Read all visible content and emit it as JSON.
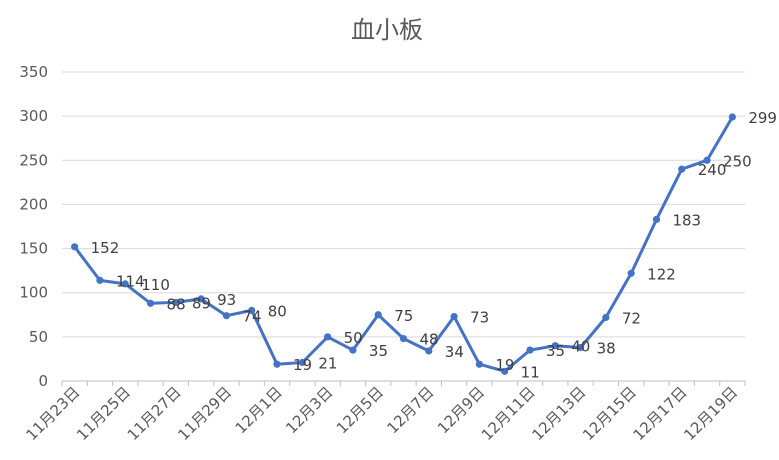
{
  "chart_data": {
    "type": "line",
    "title": "血小板",
    "xlabel": "",
    "ylabel": "",
    "ylim": [
      0,
      350
    ],
    "yticks": [
      0,
      50,
      100,
      150,
      200,
      250,
      300,
      350
    ],
    "grid": true,
    "legend": "none",
    "x": [
      "11月23日",
      "11月24日",
      "11月25日",
      "11月26日",
      "11月27日",
      "11月28日",
      "11月29日",
      "11月30日",
      "12月1日",
      "12月2日",
      "12月3日",
      "12月4日",
      "12月5日",
      "12月6日",
      "12月7日",
      "12月8日",
      "12月9日",
      "12月10日",
      "12月11日",
      "12月12日",
      "12月13日",
      "12月14日",
      "12月15日",
      "12月16日",
      "12月17日",
      "12月18日",
      "12月19日"
    ],
    "x_tick_labels": [
      "11月23日",
      "11月25日",
      "11月27日",
      "11月29日",
      "12月1日",
      "12月3日",
      "12月5日",
      "12月7日",
      "12月9日",
      "12月11日",
      "12月13日",
      "12月15日",
      "12月17日",
      "12月19日"
    ],
    "series": [
      {
        "values": [
          152,
          114,
          110,
          88,
          89,
          93,
          74,
          80,
          19,
          21,
          50,
          35,
          75,
          48,
          34,
          73,
          19,
          11,
          35,
          40,
          38,
          72,
          122,
          183,
          240,
          250,
          299
        ],
        "color": "#4472C4"
      }
    ]
  }
}
